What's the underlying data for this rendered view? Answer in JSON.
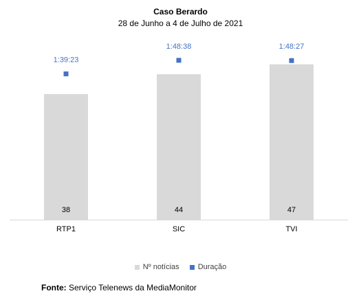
{
  "chart_data": {
    "type": "bar",
    "title": "Caso Berardo",
    "subtitle": "28 de Junho a 4 de Julho de 2021",
    "categories": [
      "RTP1",
      "SIC",
      "TVI"
    ],
    "series": [
      {
        "name": "Nº notícias",
        "kind": "bar",
        "values": [
          38,
          44,
          47
        ],
        "labels": [
          "38",
          "44",
          "47"
        ],
        "color": "#d9d9d9"
      },
      {
        "name": "Duração",
        "kind": "marker",
        "values_seconds": [
          5963,
          6518,
          6507
        ],
        "labels": [
          "1:39:23",
          "1:48:38",
          "1:48:27"
        ],
        "color": "#4472c4"
      }
    ],
    "ylim": [
      0,
      54
    ],
    "grid": false,
    "legend_position": "bottom"
  },
  "source": {
    "label": "Fonte:",
    "text": "Serviço Telenews da MediaMonitor"
  },
  "colors": {
    "bar": "#d9d9d9",
    "marker": "#4472c4",
    "axis": "#d9d9d9",
    "label_blue": "#4472c4",
    "text": "#404040"
  }
}
